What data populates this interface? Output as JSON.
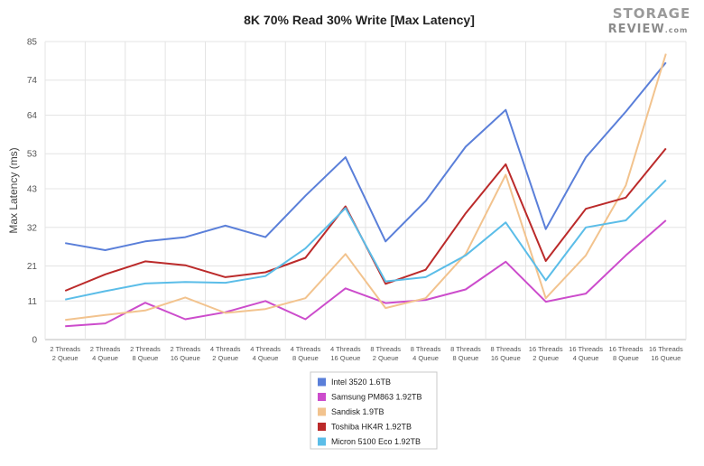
{
  "watermark": {
    "line1": "STORAGE",
    "line2": "REVIEW",
    "suffix": ".com"
  },
  "chart_data": {
    "type": "line",
    "title": "8K 70% Read 30% Write [Max Latency]",
    "ylabel": "Max Latency (ms)",
    "xlabel": "",
    "ylim": [
      0,
      85
    ],
    "yticks": [
      0,
      11,
      21,
      32,
      43,
      53,
      64,
      74,
      85
    ],
    "grid": true,
    "legend_position": "bottom",
    "categories": [
      [
        "2 Threads",
        "2 Queue"
      ],
      [
        "2 Threads",
        "4 Queue"
      ],
      [
        "2 Threads",
        "8 Queue"
      ],
      [
        "2 Threads",
        "16 Queue"
      ],
      [
        "4 Threads",
        "2 Queue"
      ],
      [
        "4 Threads",
        "4 Queue"
      ],
      [
        "4 Threads",
        "8 Queue"
      ],
      [
        "4 Threads",
        "16 Queue"
      ],
      [
        "8 Threads",
        "2 Queue"
      ],
      [
        "8 Threads",
        "4 Queue"
      ],
      [
        "8 Threads",
        "8 Queue"
      ],
      [
        "8 Threads",
        "16 Queue"
      ],
      [
        "16 Threads",
        "2 Queue"
      ],
      [
        "16 Threads",
        "4 Queue"
      ],
      [
        "16 Threads",
        "8 Queue"
      ],
      [
        "16 Threads",
        "16 Queue"
      ]
    ],
    "series": [
      {
        "name": "Intel 3520 1.6TB",
        "color": "#5a7fd9",
        "values": [
          27.5,
          25.5,
          28,
          29.2,
          32.5,
          29.2,
          41,
          52,
          28,
          39.5,
          55,
          65.5,
          31.5,
          52,
          65,
          79
        ]
      },
      {
        "name": "Samsung PM863 1.92TB",
        "color": "#cc4ccc",
        "values": [
          3.8,
          4.6,
          10.5,
          5.8,
          7.8,
          11,
          5.8,
          14.6,
          10.4,
          11.3,
          14.3,
          22.2,
          10.8,
          13.1,
          24,
          34
        ]
      },
      {
        "name": "Sandisk 1.9TB",
        "color": "#f2c38e",
        "values": [
          5.6,
          7,
          8.3,
          12,
          7.6,
          8.7,
          11.8,
          24.4,
          9,
          11.8,
          24.4,
          47,
          11.8,
          24,
          44,
          81.5
        ]
      },
      {
        "name": "Toshiba HK4R 1.92TB",
        "color": "#bb2a2a",
        "values": [
          13.9,
          18.6,
          22.3,
          21.2,
          17.8,
          19.2,
          23.3,
          38,
          15.9,
          19.9,
          36,
          50,
          22.4,
          37.3,
          40.5,
          54.5
        ]
      },
      {
        "name": "Micron 5100 Eco 1.92TB",
        "color": "#5bbde8",
        "values": [
          11.4,
          13.8,
          16,
          16.4,
          16.2,
          18.1,
          26,
          37.5,
          16.6,
          17.8,
          24,
          33.4,
          16.9,
          32,
          34,
          45.5
        ]
      }
    ]
  }
}
